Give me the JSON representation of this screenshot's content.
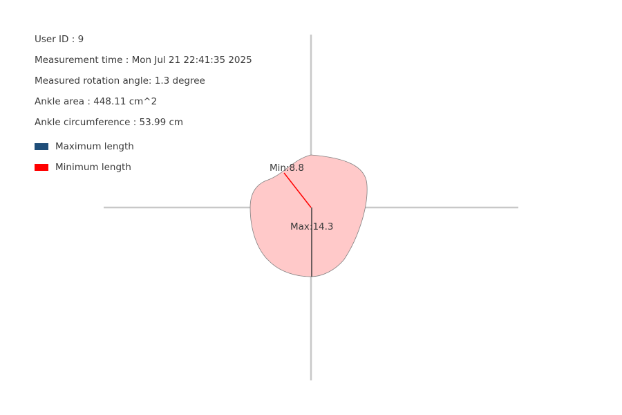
{
  "info": {
    "user_id": "User ID : 9",
    "measurement_time": "Measurement time : Mon Jul 21 22:41:35 2025",
    "rotation_angle": "Measured rotation angle: 1.3 degree",
    "ankle_area": "Ankle area : 448.11 cm^2",
    "ankle_circumference": "Ankle circumference : 53.99 cm"
  },
  "legend": {
    "max_label": "Maximum length",
    "max_color": "#1f4e79",
    "min_label": "Minimum length",
    "min_color": "#ff0000"
  },
  "diagram": {
    "min_label": "Min:8.8",
    "max_label": "Max:14.3",
    "shape_fill": "#ffc9c9",
    "shape_stroke": "#808080",
    "axis_color": "#c8c8c8",
    "max_line_color": "#3a3a3a",
    "min_line_color": "#ff0000"
  }
}
